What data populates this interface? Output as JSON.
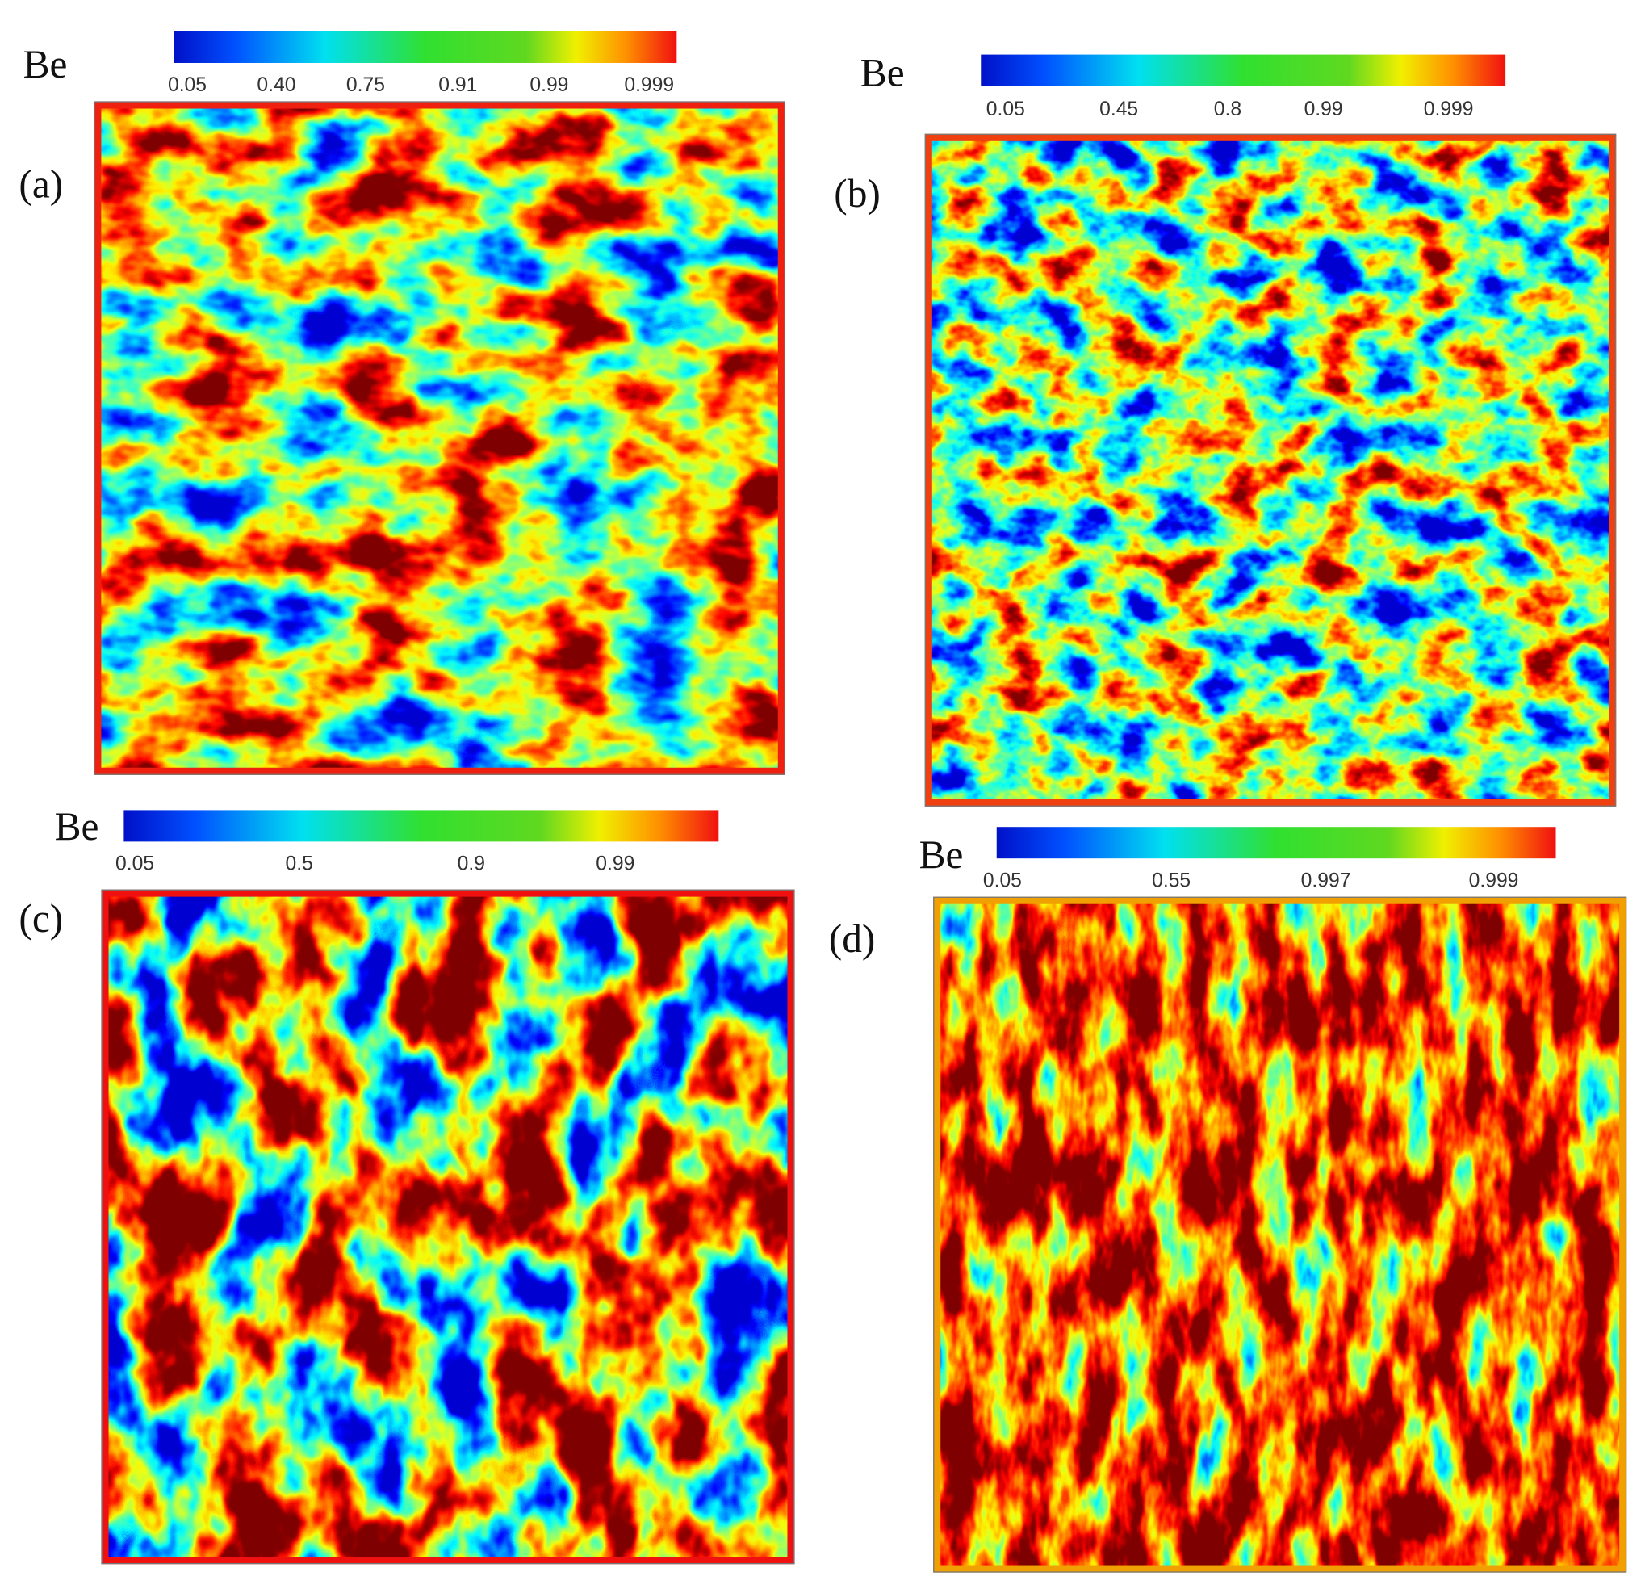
{
  "panels": [
    {
      "label": "(a)",
      "colorbar": {
        "title": "Be",
        "ticks": [
          "0.05",
          "0.40",
          "0.75",
          "0.91",
          "0.99",
          "0.999"
        ]
      }
    },
    {
      "label": "(b)",
      "colorbar": {
        "title": "Be",
        "ticks": [
          "0.05",
          "0.45",
          "0.8",
          "0.99",
          "0.999"
        ]
      }
    },
    {
      "label": "(c)",
      "colorbar": {
        "title": "Be",
        "ticks": [
          "0.05",
          "0.5",
          "0.9",
          "0.99"
        ]
      }
    },
    {
      "label": "(d)",
      "colorbar": {
        "title": "Be",
        "ticks": [
          "0.05",
          "0.55",
          "0.997",
          "0.999"
        ]
      }
    }
  ]
}
